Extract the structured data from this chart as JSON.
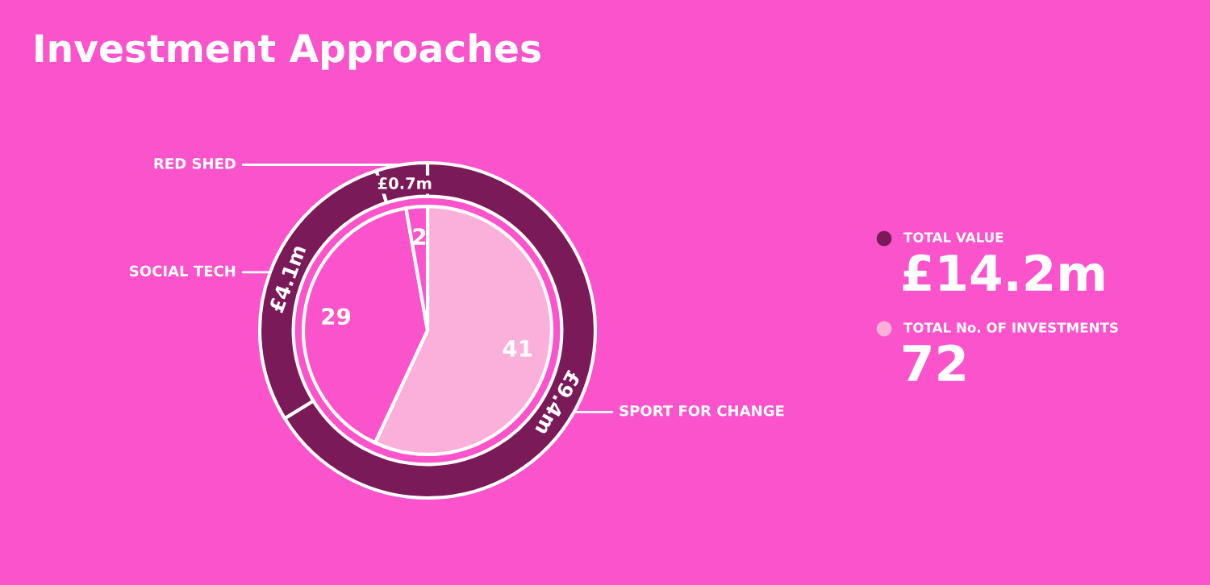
{
  "chart_data": {
    "type": "donut",
    "title": "Investment Approaches",
    "categories": [
      "SPORT FOR CHANGE",
      "SOCIAL TECH",
      "RED SHED"
    ],
    "series": [
      {
        "name": "TOTAL VALUE",
        "color": "#7a1a58",
        "values": [
          9.4,
          4.1,
          0.7
        ],
        "value_labels": [
          "£9.4m",
          "£4.1m",
          "£0.7m"
        ]
      },
      {
        "name": "TOTAL No. OF INVESTMENTS",
        "color": "#fbb0dc",
        "colors": [
          "#fbb0dc",
          "#fb53cc",
          "#fb53cc"
        ],
        "values": [
          41,
          29,
          2
        ],
        "value_labels": [
          "41",
          "29",
          "2"
        ]
      }
    ],
    "annotations": [
      "£14.2m",
      "72"
    ],
    "legend": "right"
  }
}
